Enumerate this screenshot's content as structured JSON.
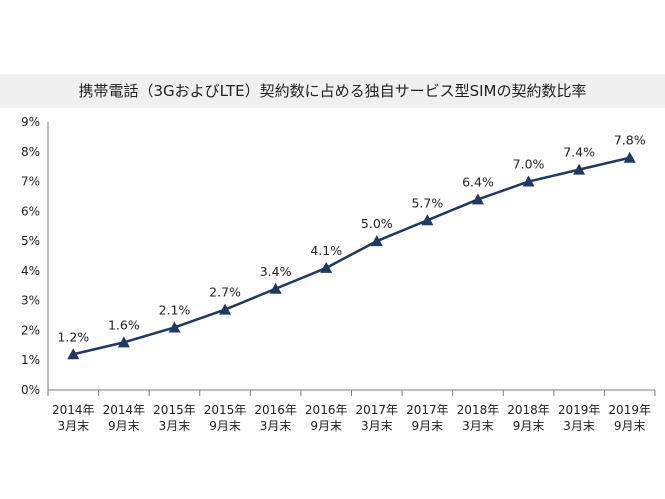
{
  "chart_data": {
    "type": "line",
    "title": "携帯電話（3GおよびLTE）契約数に占める独自サービス型SIMの契約数比率",
    "xlabel": "",
    "ylabel": "",
    "categories": [
      [
        "2014年",
        "3月末"
      ],
      [
        "2014年",
        "9月末"
      ],
      [
        "2015年",
        "3月末"
      ],
      [
        "2015年",
        "9月末"
      ],
      [
        "2016年",
        "3月末"
      ],
      [
        "2016年",
        "9月末"
      ],
      [
        "2017年",
        "3月末"
      ],
      [
        "2017年",
        "9月末"
      ],
      [
        "2018年",
        "3月末"
      ],
      [
        "2018年",
        "9月末"
      ],
      [
        "2019年",
        "3月末"
      ],
      [
        "2019年",
        "9月末"
      ]
    ],
    "values": [
      1.2,
      1.6,
      2.1,
      2.7,
      3.4,
      4.1,
      5.0,
      5.7,
      6.4,
      7.0,
      7.4,
      7.8
    ],
    "data_labels": [
      "1.2%",
      "1.6%",
      "2.1%",
      "2.7%",
      "3.4%",
      "4.1%",
      "5.0%",
      "5.7%",
      "6.4%",
      "7.0%",
      "7.4%",
      "7.8%"
    ],
    "ylim": [
      0,
      9
    ],
    "y_ticks": [
      "0%",
      "1%",
      "2%",
      "3%",
      "4%",
      "5%",
      "6%",
      "7%",
      "8%",
      "9%"
    ],
    "grid": false,
    "legend": "none",
    "marker": "triangle",
    "line_color": "#1f3864"
  }
}
